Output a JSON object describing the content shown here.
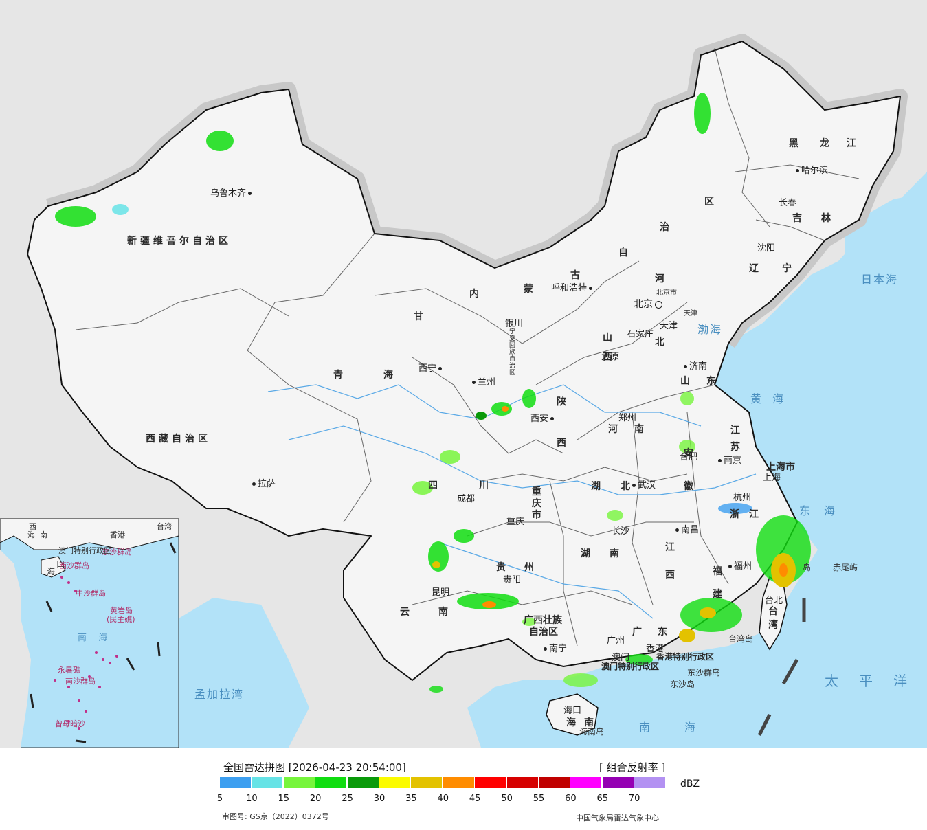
{
  "title": "全国雷达拼图",
  "timestamp": "[2026-04-23 20:54:00]",
  "product": "[ 组合反射率 ]",
  "unit": "dBZ",
  "legend": {
    "colors": [
      "#3d9ff0",
      "#66e3e6",
      "#77f53c",
      "#10dd10",
      "#0a9a0a",
      "#fbfb00",
      "#e3c200",
      "#ff8c00",
      "#ff0000",
      "#d60000",
      "#c00000",
      "#ff00ff",
      "#9500b3",
      "#b391f2"
    ],
    "ticks": [
      "5",
      "10",
      "15",
      "20",
      "25",
      "30",
      "35",
      "40",
      "45",
      "50",
      "55",
      "60",
      "65",
      "70"
    ]
  },
  "approval": "审图号: GS京（2022）0372号",
  "source": "中国气象局雷达气象中心",
  "colors": {
    "sea": "#b2e2f8",
    "land": "#f5f5f5",
    "foreign_land": "#e6e6e6",
    "halo": "#c8c8c8",
    "border": "#111111"
  },
  "provinces": {
    "xinjiang": "新疆维吾尔自治区",
    "xizang": "西藏自治区",
    "qinghai": [
      "青",
      "海"
    ],
    "gansu": "甘",
    "neimenggu": [
      "内",
      "蒙",
      "古",
      "自",
      "治",
      "区"
    ],
    "heilongjiang": [
      "黑",
      "龙",
      "江"
    ],
    "jilin": [
      "吉",
      "林"
    ],
    "liaoning": [
      "辽",
      "宁"
    ],
    "hebei": [
      "河",
      "北"
    ],
    "shanxi": "山西",
    "shandong": [
      "山",
      "东"
    ],
    "henan": [
      "河",
      "南"
    ],
    "shaanxi": "陕西",
    "ningxia": "宁夏回族自治区",
    "sichuan": [
      "四",
      "川"
    ],
    "chongqing": "重庆市",
    "hubei": [
      "湖",
      "北"
    ],
    "anhui": "安徽",
    "jiangsu": "江苏",
    "shanghai": "上海市",
    "zhejiang": [
      "浙",
      "江"
    ],
    "jiangxi": "江西",
    "hunan": [
      "湖",
      "南"
    ],
    "guizhou": [
      "贵",
      "州"
    ],
    "yunnan": [
      "云",
      "南"
    ],
    "guangxi_1": "广西壮族",
    "guangxi_2": "自治区",
    "guangdong": [
      "广",
      "东"
    ],
    "fujian": "福建",
    "taiwan": "台湾",
    "hainan": [
      "海",
      "南"
    ],
    "hongkong": "香港特别行政区",
    "macau": "澳门特别行政区",
    "beijing_city": "北京市",
    "tianjin_city": "天津"
  },
  "cities": {
    "urumqi": "乌鲁木齐",
    "lhasa": "拉萨",
    "xining": "西宁",
    "lanzhou": "兰州",
    "yinchuan": "银川",
    "huhhot": "呼和浩特",
    "beijing": "北京",
    "tianjin": "天津",
    "shijiazhuang": "石家庄",
    "taiyuan": "太原",
    "jinan": "济南",
    "zhengzhou": "郑州",
    "xian": "西安",
    "chengdu": "成都",
    "chongqing": "重庆",
    "wuhan": "武汉",
    "hefei": "合肥",
    "nanjing": "南京",
    "shanghai": "上海",
    "hangzhou": "杭州",
    "nanchang": "南昌",
    "changsha": "长沙",
    "guiyang": "贵阳",
    "kunming": "昆明",
    "nanning": "南宁",
    "guangzhou": "广州",
    "hongkong": "香港",
    "macau": "澳门",
    "fuzhou": "福州",
    "taipei": "台北",
    "haikou": "海口",
    "shenyang": "沈阳",
    "changchun": "长春",
    "harbin": "哈尔滨"
  },
  "seas": {
    "japan_sea": "日本海",
    "bohai": "渤海",
    "yellow_sea": "黄海",
    "east_sea": "东海",
    "south_sea": "南海",
    "pacific": "太平洋",
    "bengal": "孟加拉湾"
  },
  "islands": {
    "chiwei": "赤尾屿",
    "diaoyu": "岛",
    "taiwan_island": "台湾岛",
    "dongsha": "东沙群岛",
    "dongsha_island": "东沙岛",
    "hainan_island": "海南岛"
  },
  "inset": {
    "hainan_label": [
      "海",
      "口"
    ],
    "south_sea": [
      "南",
      "海"
    ],
    "labels": [
      "西沙群岛",
      "中沙群岛",
      "黄岩岛",
      "(民主礁)",
      "永暑礁",
      "南沙群岛",
      "曾母暗沙",
      "东沙群岛",
      "香港",
      "澳门特别行政区",
      "台湾",
      "西",
      "南",
      "海"
    ]
  }
}
